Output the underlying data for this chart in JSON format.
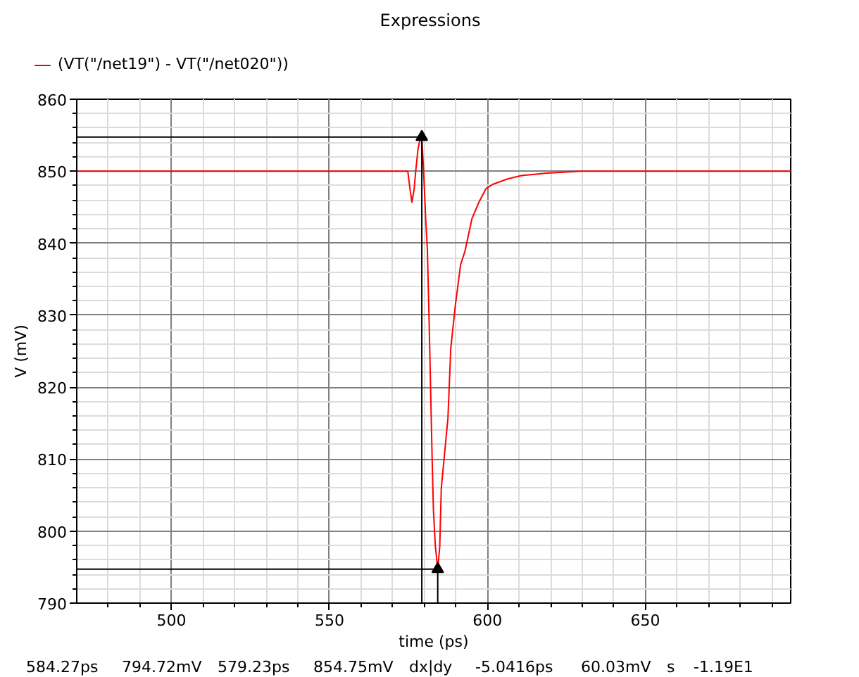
{
  "chart_data": {
    "type": "line",
    "title": "Expressions",
    "xlabel": "time (ps)",
    "ylabel": "V (mV)",
    "xlim": [
      470,
      696
    ],
    "ylim": [
      790,
      860
    ],
    "xticks": [
      {
        "value": 480,
        "label": null
      },
      {
        "value": 490,
        "label": null
      },
      500,
      {
        "value": 510,
        "label": null
      },
      {
        "value": 520,
        "label": null
      },
      {
        "value": 530,
        "label": null
      },
      {
        "value": 540,
        "label": null
      },
      550,
      {
        "value": 560,
        "label": null
      },
      {
        "value": 570,
        "label": null
      },
      {
        "value": 580,
        "label": null
      },
      {
        "value": 590,
        "label": null
      },
      600,
      {
        "value": 610,
        "label": null
      },
      {
        "value": 620,
        "label": null
      },
      {
        "value": 630,
        "label": null
      },
      {
        "value": 640,
        "label": null
      },
      650,
      {
        "value": 660,
        "label": null
      },
      {
        "value": 670,
        "label": null
      },
      {
        "value": 680,
        "label": null
      },
      {
        "value": 690,
        "label": null
      }
    ],
    "yticks": [
      790,
      {
        "value": 792,
        "label": null
      },
      {
        "value": 794,
        "label": null
      },
      {
        "value": 796,
        "label": null
      },
      {
        "value": 798,
        "label": null
      },
      800,
      {
        "value": 802,
        "label": null
      },
      {
        "value": 804,
        "label": null
      },
      {
        "value": 806,
        "label": null
      },
      {
        "value": 808,
        "label": null
      },
      810,
      {
        "value": 812,
        "label": null
      },
      {
        "value": 814,
        "label": null
      },
      {
        "value": 816,
        "label": null
      },
      {
        "value": 818,
        "label": null
      },
      820,
      {
        "value": 822,
        "label": null
      },
      {
        "value": 824,
        "label": null
      },
      {
        "value": 826,
        "label": null
      },
      {
        "value": 828,
        "label": null
      },
      830,
      {
        "value": 832,
        "label": null
      },
      {
        "value": 834,
        "label": null
      },
      {
        "value": 836,
        "label": null
      },
      {
        "value": 838,
        "label": null
      },
      840,
      {
        "value": 842,
        "label": null
      },
      {
        "value": 844,
        "label": null
      },
      {
        "value": 846,
        "label": null
      },
      {
        "value": 848,
        "label": null
      },
      850,
      {
        "value": 852,
        "label": null
      },
      {
        "value": 854,
        "label": null
      },
      {
        "value": 856,
        "label": null
      },
      {
        "value": 858,
        "label": null
      },
      860
    ],
    "grid": true,
    "legend": "top left",
    "line_style": "solid",
    "series": [
      {
        "name": "(VT(\"/net19\") - VT(\"/net020\"))",
        "color": "#ff0000",
        "x": [
          470,
          574.8,
          575.5,
          576.1,
          576.8,
          577.3,
          578.0,
          578.9,
          579.23,
          579.8,
          580.5,
          581.0,
          581.5,
          582.0,
          582.5,
          582.9,
          583.5,
          584.27,
          584.9,
          585.4,
          587.5,
          588.4,
          589.8,
          591.5,
          592.9,
          595.1,
          597.3,
          599.6,
          601.8,
          606.2,
          610.7,
          618.1,
          629.8,
          696
        ],
        "values": [
          850,
          850,
          847.5,
          845.7,
          847.5,
          850,
          853,
          855,
          854.75,
          850,
          843,
          839,
          830,
          820,
          810,
          803,
          798,
          794.72,
          797.8,
          806,
          815.7,
          825.4,
          831.2,
          837,
          838.9,
          843.4,
          845.7,
          847.6,
          848.2,
          848.9,
          849.4,
          849.7,
          850,
          850
        ]
      },
      {
        "type": "line",
        "color": "#000000",
        "x": [
          470,
          579.23,
          579.23
        ],
        "values": [
          854.75,
          854.75,
          790
        ]
      },
      {
        "type": "line",
        "color": "#000000",
        "x": [
          470,
          584.27,
          584.27
        ],
        "values": [
          794.72,
          794.72,
          790
        ]
      },
      {
        "type": "scatter",
        "color": "#000000",
        "marker": "triangle",
        "x": [
          579.23,
          584.27
        ],
        "values": [
          854.75,
          794.72
        ]
      }
    ],
    "annotations": [
      "584.27ps",
      "794.72mV",
      "579.23ps",
      "854.75mV",
      "dx|dy",
      "-5.0416ps",
      "60.03mV",
      "s",
      "-1.19E1"
    ]
  }
}
